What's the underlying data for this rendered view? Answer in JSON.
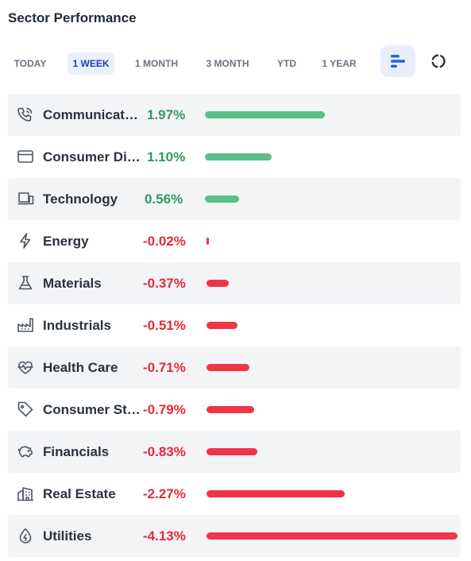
{
  "header": {
    "title": "Sector Performance"
  },
  "tabs": [
    {
      "label": "TODAY",
      "active": false
    },
    {
      "label": "1 WEEK",
      "active": true
    },
    {
      "label": "1 MONTH",
      "active": false
    },
    {
      "label": "3 MONTH",
      "active": false
    },
    {
      "label": "YTD",
      "active": false
    },
    {
      "label": "1 YEAR",
      "active": false
    }
  ],
  "view_toggles": [
    {
      "icon": "bar-chart-icon",
      "active": true
    },
    {
      "icon": "donut-chart-icon",
      "active": false
    }
  ],
  "colors": {
    "positive": "#2e9a63",
    "positive_bar": "#5bbf8a",
    "negative": "#e5293b",
    "negative_bar": "#ef3547",
    "accent": "#2563eb"
  },
  "sectors": [
    {
      "name": "Communicat…",
      "value": "1.97%",
      "change": 1.97,
      "icon": "phone-icon"
    },
    {
      "name": "Consumer Di…",
      "value": "1.10%",
      "change": 1.1,
      "icon": "credit-card-icon"
    },
    {
      "name": "Technology",
      "value": "0.56%",
      "change": 0.56,
      "icon": "laptop-icon"
    },
    {
      "name": "Energy",
      "value": "-0.02%",
      "change": -0.02,
      "icon": "lightning-icon"
    },
    {
      "name": "Materials",
      "value": "-0.37%",
      "change": -0.37,
      "icon": "flask-icon"
    },
    {
      "name": "Industrials",
      "value": "-0.51%",
      "change": -0.51,
      "icon": "factory-icon"
    },
    {
      "name": "Health Care",
      "value": "-0.71%",
      "change": -0.71,
      "icon": "heartbeat-icon"
    },
    {
      "name": "Consumer St…",
      "value": "-0.79%",
      "change": -0.79,
      "icon": "tag-icon"
    },
    {
      "name": "Financials",
      "value": "-0.83%",
      "change": -0.83,
      "icon": "piggy-bank-icon"
    },
    {
      "name": "Real Estate",
      "value": "-2.27%",
      "change": -2.27,
      "icon": "building-icon"
    },
    {
      "name": "Utilities",
      "value": "-4.13%",
      "change": -4.13,
      "icon": "drop-icon"
    }
  ]
}
